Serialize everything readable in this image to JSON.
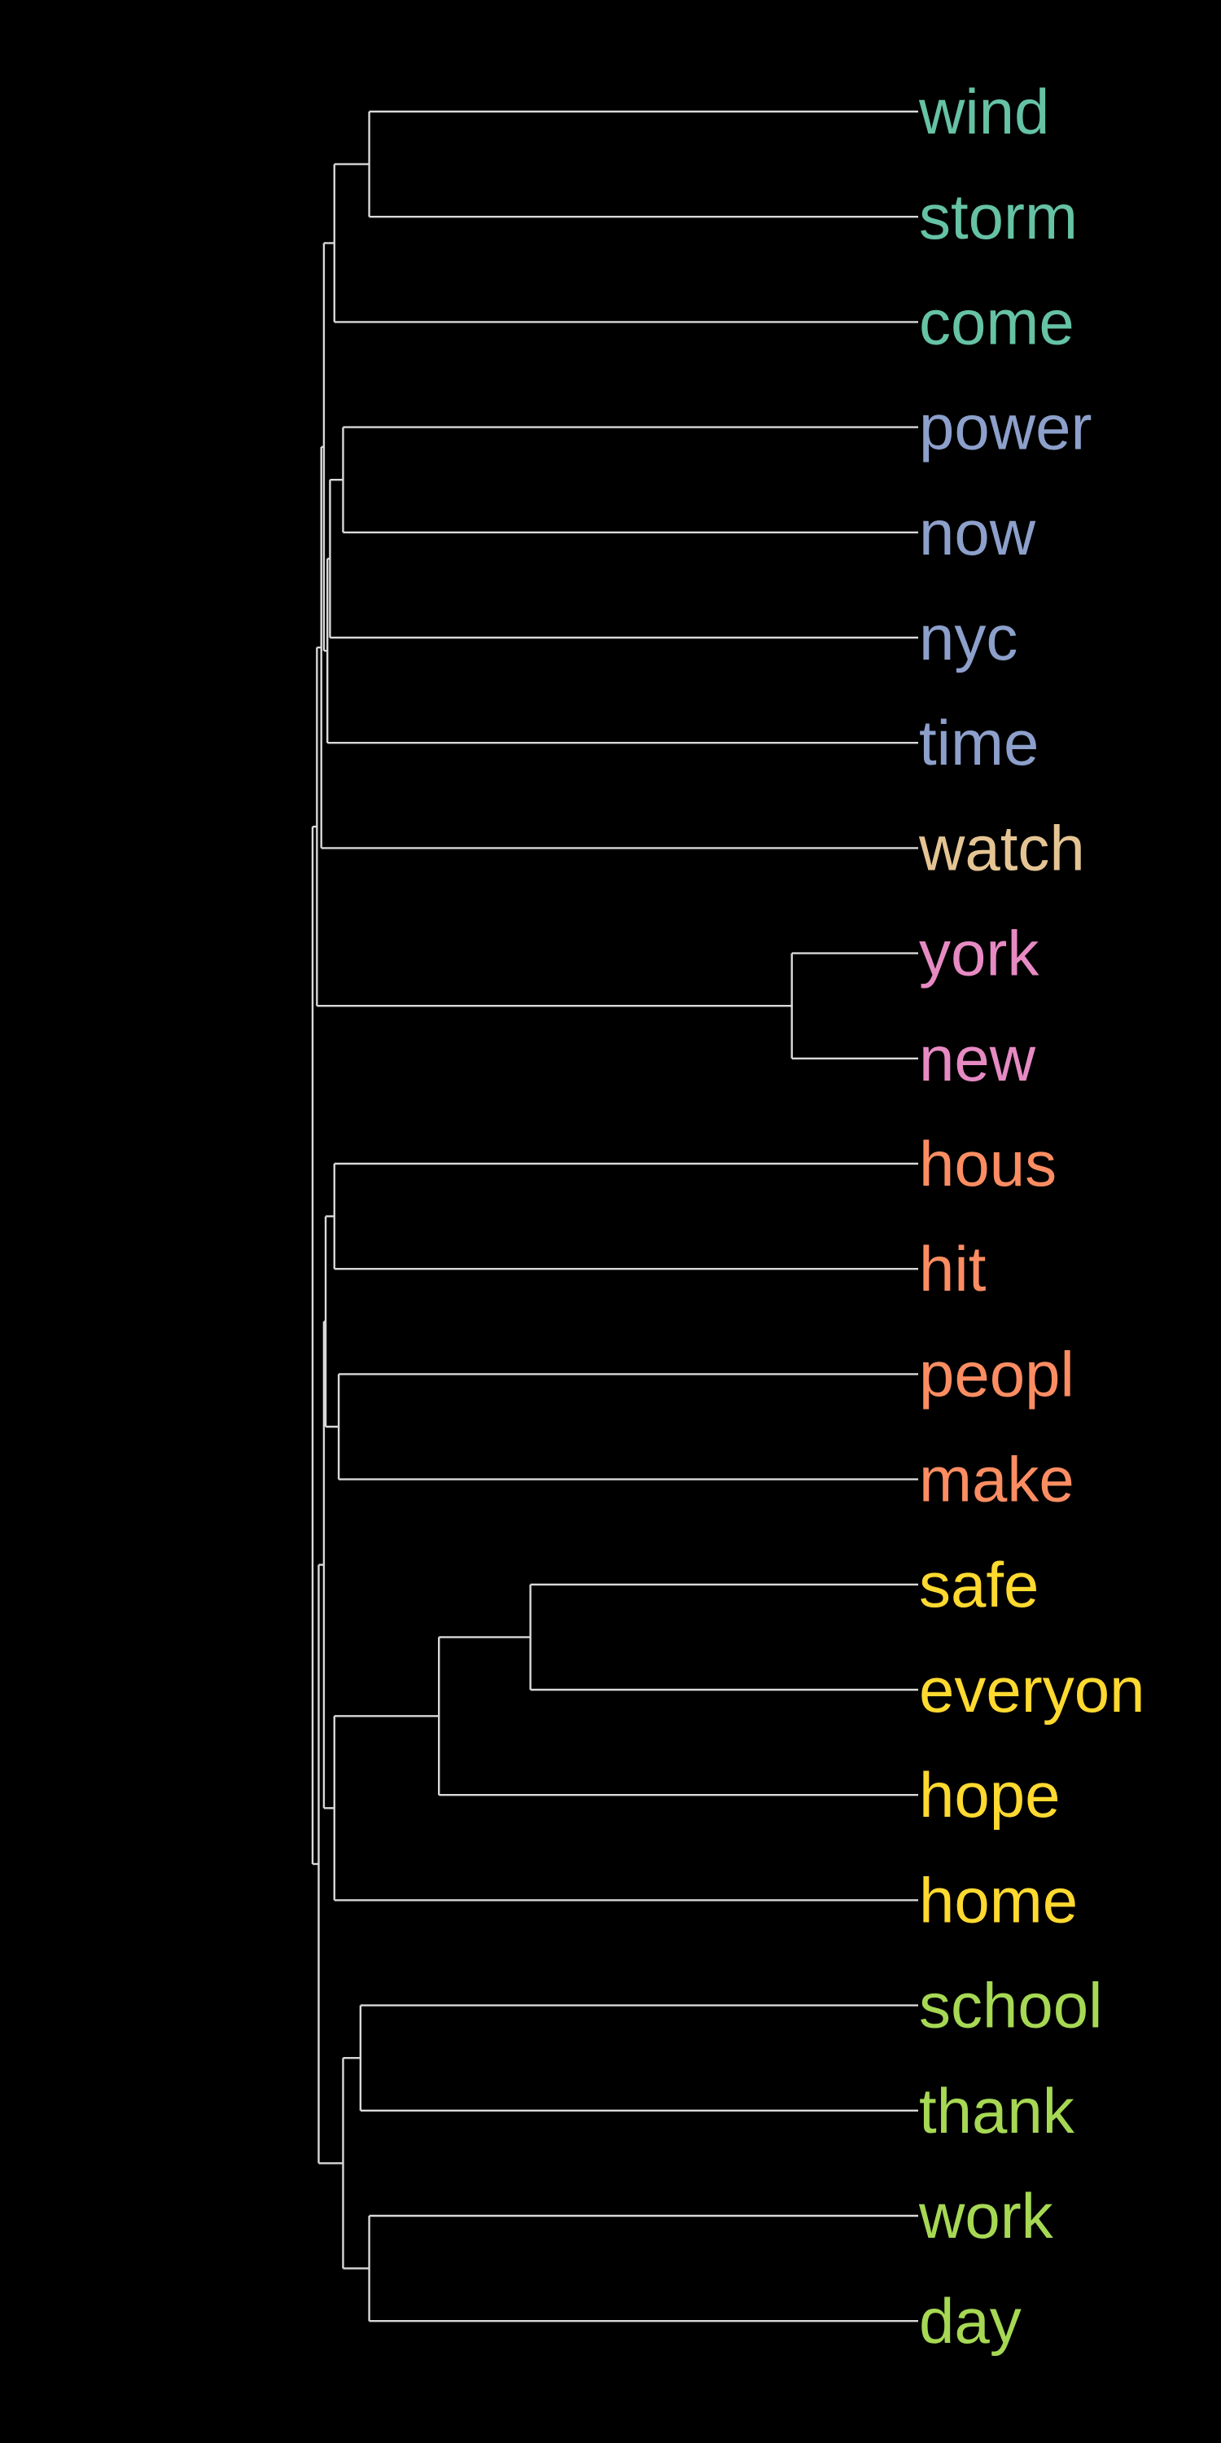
{
  "colors": {
    "background": "#000000",
    "branch": "#d9d9d9",
    "clusters": {
      "teal": "#66c2a5",
      "blue": "#8da0cb",
      "tan": "#e5c494",
      "pink": "#e78ac3",
      "orange": "#fc8d62",
      "yellow": "#ffd92f",
      "green": "#a6d854"
    }
  },
  "dendrogram": {
    "orientation": "root-left, leaves-right",
    "leaves": [
      {
        "label": "wind",
        "cluster": "teal"
      },
      {
        "label": "storm",
        "cluster": "teal"
      },
      {
        "label": "come",
        "cluster": "teal"
      },
      {
        "label": "power",
        "cluster": "blue"
      },
      {
        "label": "now",
        "cluster": "blue"
      },
      {
        "label": "nyc",
        "cluster": "blue"
      },
      {
        "label": "time",
        "cluster": "blue"
      },
      {
        "label": "watch",
        "cluster": "tan"
      },
      {
        "label": "york",
        "cluster": "pink"
      },
      {
        "label": "new",
        "cluster": "pink"
      },
      {
        "label": "hous",
        "cluster": "orange"
      },
      {
        "label": "hit",
        "cluster": "orange"
      },
      {
        "label": "peopl",
        "cluster": "orange"
      },
      {
        "label": "make",
        "cluster": "orange"
      },
      {
        "label": "safe",
        "cluster": "yellow"
      },
      {
        "label": "everyon",
        "cluster": "yellow"
      },
      {
        "label": "hope",
        "cluster": "yellow"
      },
      {
        "label": "home",
        "cluster": "yellow"
      },
      {
        "label": "school",
        "cluster": "green"
      },
      {
        "label": "thank",
        "cluster": "green"
      },
      {
        "label": "work",
        "cluster": "green"
      },
      {
        "label": "day",
        "cluster": "green"
      }
    ],
    "merges": [
      {
        "a": "L0",
        "b": "L1",
        "height": 0.63
      },
      {
        "a": "N0",
        "b": "L2",
        "height": 0.67
      },
      {
        "a": "L3",
        "b": "L4",
        "height": 0.66
      },
      {
        "a": "N2",
        "b": "L5",
        "height": 0.675
      },
      {
        "a": "N3",
        "b": "L6",
        "height": 0.678
      },
      {
        "a": "N1",
        "b": "N4",
        "height": 0.682
      },
      {
        "a": "N5",
        "b": "L7",
        "height": 0.685
      },
      {
        "a": "L8",
        "b": "L9",
        "height": 0.145
      },
      {
        "a": "N6",
        "b": "N7",
        "height": 0.69
      },
      {
        "a": "L10",
        "b": "L11",
        "height": 0.67
      },
      {
        "a": "L12",
        "b": "L13",
        "height": 0.665
      },
      {
        "a": "N9",
        "b": "N10",
        "height": 0.68
      },
      {
        "a": "L14",
        "b": "L15",
        "height": 0.445
      },
      {
        "a": "N12",
        "b": "L16",
        "height": 0.55
      },
      {
        "a": "N13",
        "b": "L17",
        "height": 0.67
      },
      {
        "a": "N11",
        "b": "N14",
        "height": 0.682
      },
      {
        "a": "L18",
        "b": "L19",
        "height": 0.64
      },
      {
        "a": "L20",
        "b": "L21",
        "height": 0.63
      },
      {
        "a": "N16",
        "b": "N17",
        "height": 0.66
      },
      {
        "a": "N15",
        "b": "N18",
        "height": 0.688
      },
      {
        "a": "N8",
        "b": "N19",
        "height": 0.695
      }
    ]
  }
}
